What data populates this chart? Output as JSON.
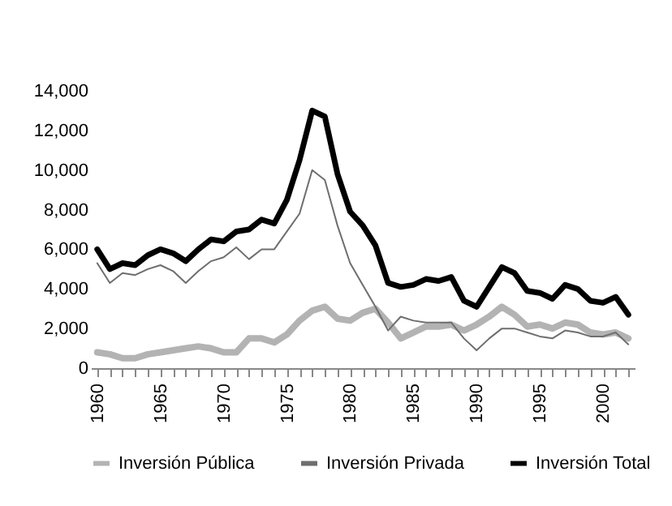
{
  "chart_data": {
    "type": "line",
    "x": [
      1960,
      1961,
      1962,
      1963,
      1964,
      1965,
      1966,
      1967,
      1968,
      1969,
      1970,
      1971,
      1972,
      1973,
      1974,
      1975,
      1976,
      1977,
      1978,
      1979,
      1980,
      1981,
      1982,
      1983,
      1984,
      1985,
      1986,
      1987,
      1988,
      1989,
      1990,
      1991,
      1992,
      1993,
      1994,
      1995,
      1996,
      1997,
      1998,
      1999,
      2000,
      2001,
      2002
    ],
    "series": [
      {
        "name": "Inversión Pública",
        "color": "#b3b3b3",
        "values": [
          800,
          700,
          500,
          500,
          700,
          800,
          900,
          1000,
          1100,
          1000,
          800,
          800,
          1500,
          1500,
          1300,
          1700,
          2400,
          2900,
          3100,
          2500,
          2400,
          2800,
          3000,
          2300,
          1500,
          1800,
          2100,
          2100,
          2200,
          1900,
          2200,
          2600,
          3100,
          2700,
          2100,
          2200,
          2000,
          2300,
          2200,
          1800,
          1700,
          1800,
          1500
        ]
      },
      {
        "name": "Inversión Privada",
        "color": "#6e6e6e",
        "values": [
          5300,
          4300,
          4800,
          4700,
          5000,
          5200,
          4900,
          4300,
          4900,
          5400,
          5600,
          6100,
          5500,
          6000,
          6000,
          6900,
          7800,
          10000,
          9500,
          7200,
          5300,
          4200,
          3100,
          1900,
          2600,
          2400,
          2300,
          2300,
          2300,
          1500,
          900,
          1500,
          2000,
          2000,
          1800,
          1600,
          1500,
          1900,
          1800,
          1600,
          1600,
          1800,
          1200
        ]
      },
      {
        "name": "Inversión Total",
        "color": "#000000",
        "values": [
          6000,
          5000,
          5300,
          5200,
          5700,
          6000,
          5800,
          5400,
          6000,
          6500,
          6400,
          6900,
          7000,
          7500,
          7300,
          8500,
          10500,
          13000,
          12700,
          9800,
          7900,
          7200,
          6200,
          4300,
          4100,
          4200,
          4500,
          4400,
          4600,
          3400,
          3100,
          4100,
          5100,
          4800,
          3900,
          3800,
          3500,
          4200,
          4000,
          3400,
          3300,
          3600,
          2700
        ]
      }
    ],
    "xlim": [
      1959.5,
      2002.5
    ],
    "xticks": [
      1960,
      {
        "value": 1961,
        "label": null
      },
      {
        "value": 1962,
        "label": null
      },
      {
        "value": 1963,
        "label": null
      },
      {
        "value": 1964,
        "label": null
      },
      1965,
      {
        "value": 1966,
        "label": null
      },
      {
        "value": 1967,
        "label": null
      },
      {
        "value": 1968,
        "label": null
      },
      {
        "value": 1969,
        "label": null
      },
      1970,
      {
        "value": 1971,
        "label": null
      },
      {
        "value": 1972,
        "label": null
      },
      {
        "value": 1973,
        "label": null
      },
      {
        "value": 1974,
        "label": null
      },
      1975,
      {
        "value": 1976,
        "label": null
      },
      {
        "value": 1977,
        "label": null
      },
      {
        "value": 1978,
        "label": null
      },
      {
        "value": 1979,
        "label": null
      },
      1980,
      {
        "value": 1981,
        "label": null
      },
      {
        "value": 1982,
        "label": null
      },
      {
        "value": 1983,
        "label": null
      },
      {
        "value": 1984,
        "label": null
      },
      1985,
      {
        "value": 1986,
        "label": null
      },
      {
        "value": 1987,
        "label": null
      },
      {
        "value": 1988,
        "label": null
      },
      {
        "value": 1989,
        "label": null
      },
      1990,
      {
        "value": 1991,
        "label": null
      },
      {
        "value": 1992,
        "label": null
      },
      {
        "value": 1993,
        "label": null
      },
      {
        "value": 1994,
        "label": null
      },
      1995,
      {
        "value": 1996,
        "label": null
      },
      {
        "value": 1997,
        "label": null
      },
      {
        "value": 1998,
        "label": null
      },
      {
        "value": 1999,
        "label": null
      },
      2000,
      {
        "value": 2001,
        "label": null
      },
      {
        "value": 2002,
        "label": null
      }
    ],
    "ylim": [
      0,
      14000
    ],
    "yticks": [
      0,
      {
        "value": 2000,
        "label": "2,000"
      },
      {
        "value": 4000,
        "label": "4,000"
      },
      {
        "value": 6000,
        "label": "6,000"
      },
      {
        "value": 8000,
        "label": "8,000"
      },
      {
        "value": 10000,
        "label": "10,000"
      },
      {
        "value": 12000,
        "label": "12,000"
      },
      {
        "value": 14000,
        "label": "14,000"
      }
    ],
    "grid": false,
    "legend": "bottom",
    "marker": "none",
    "line_style": "solid"
  }
}
